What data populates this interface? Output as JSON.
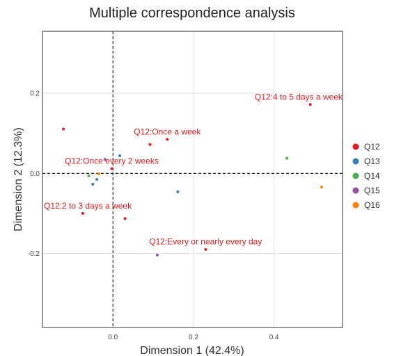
{
  "chart_data": {
    "type": "scatter",
    "title": "Multiple correspondence analysis",
    "xlabel": "Dimension 1 (42.4%)",
    "ylabel": "Dimension 2 (12.3%)",
    "xlim": [
      -0.175,
      0.57
    ],
    "ylim": [
      -0.385,
      0.355
    ],
    "xticks": [
      0.0,
      0.2,
      0.4
    ],
    "yticks": [
      -0.2,
      0.0,
      0.2
    ],
    "xtick_labels": [
      "0.0",
      "0.2",
      "0.4"
    ],
    "ytick_labels": [
      "-0.2",
      "0.0",
      "0.2"
    ],
    "grid": true,
    "reference_lines": {
      "x": 0,
      "y": 0,
      "style": "dashed"
    },
    "legend": {
      "position": "right",
      "entries": [
        "Q12",
        "Q13",
        "Q14",
        "Q15",
        "Q16"
      ]
    },
    "series": [
      {
        "name": "Q12",
        "color": "#E41A1C",
        "points": [
          {
            "x": 0.49,
            "y": 0.172,
            "label": "Q12:4 to 5 days a week"
          },
          {
            "x": 0.135,
            "y": 0.085,
            "label": "Q12:Once a week"
          },
          {
            "x": 0.092,
            "y": 0.072
          },
          {
            "x": -0.123,
            "y": 0.111
          },
          {
            "x": -0.003,
            "y": 0.012,
            "label": "Q12:Once every 2 weeks"
          },
          {
            "x": -0.075,
            "y": -0.1,
            "label": "Q12:2 to 3 days a week"
          },
          {
            "x": 0.03,
            "y": -0.113
          },
          {
            "x": 0.23,
            "y": -0.19,
            "label": "Q12:Every or nearly every day"
          }
        ]
      },
      {
        "name": "Q13",
        "color": "#377EB8",
        "points": [
          {
            "x": 0.017,
            "y": 0.044
          },
          {
            "x": -0.04,
            "y": -0.015
          },
          {
            "x": -0.05,
            "y": -0.027
          },
          {
            "x": 0.161,
            "y": -0.046
          }
        ]
      },
      {
        "name": "Q14",
        "color": "#4DAF4A",
        "points": [
          {
            "x": 0.432,
            "y": 0.038
          },
          {
            "x": -0.06,
            "y": -0.006
          }
        ]
      },
      {
        "name": "Q15",
        "color": "#984EA3",
        "points": [
          {
            "x": -0.02,
            "y": 0.035
          },
          {
            "x": 0.11,
            "y": -0.204
          }
        ]
      },
      {
        "name": "Q16",
        "color": "#FF7F00",
        "points": [
          {
            "x": 0.518,
            "y": -0.034
          },
          {
            "x": -0.035,
            "y": -0.001
          }
        ]
      }
    ]
  }
}
